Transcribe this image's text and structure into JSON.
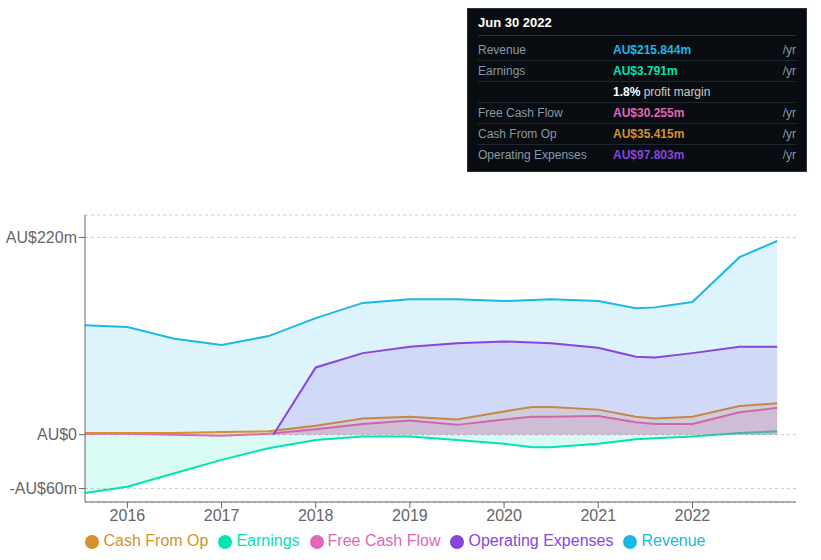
{
  "chart_data": {
    "type": "area",
    "xlim": [
      2015.55,
      2023.1
    ],
    "xticks": [
      2016,
      2017,
      2018,
      2019,
      2020,
      2021,
      2022
    ],
    "ylim": [
      -75,
      245
    ],
    "yticks": [
      {
        "value": -60,
        "label": "-AU$60m"
      },
      {
        "value": 0,
        "label": "AU$0"
      },
      {
        "value": 220,
        "label": "AU$220m"
      }
    ],
    "grid": true,
    "legend": "bottom",
    "series": [
      {
        "name": "Revenue",
        "color": "#1ab8e8",
        "x": [
          2015.55,
          2016.0,
          2016.5,
          2017.0,
          2017.5,
          2018.0,
          2018.5,
          2019.0,
          2019.5,
          2020.0,
          2020.5,
          2021.0,
          2021.4,
          2021.6,
          2022.0,
          2022.5,
          2022.9
        ],
        "values": [
          122,
          120,
          107,
          100,
          110,
          130,
          147,
          151,
          151,
          149,
          151,
          149,
          141,
          142,
          148,
          198,
          216
        ]
      },
      {
        "name": "Earnings",
        "color": "#00e5b0",
        "x": [
          2015.55,
          2016.0,
          2016.5,
          2017.0,
          2017.5,
          2018.0,
          2018.5,
          2019.0,
          2019.5,
          2020.0,
          2020.3,
          2020.5,
          2021.0,
          2021.4,
          2021.6,
          2022.0,
          2022.5,
          2022.9
        ],
        "values": [
          -65,
          -58,
          -43,
          -28,
          -15,
          -6,
          -2,
          -2,
          -6,
          -10,
          -14,
          -14,
          -10,
          -5,
          -4,
          -2,
          2,
          3.8
        ]
      },
      {
        "name": "Free Cash Flow",
        "color": "#e066bb",
        "x": [
          2015.55,
          2016.0,
          2016.5,
          2017.0,
          2017.5,
          2018.0,
          2018.5,
          2019.0,
          2019.5,
          2020.0,
          2020.3,
          2020.5,
          2021.0,
          2021.4,
          2021.6,
          2022.0,
          2022.5,
          2022.9
        ],
        "values": [
          1,
          1,
          0,
          -1,
          1,
          6,
          12,
          16,
          11,
          17,
          20,
          20,
          21,
          14,
          12,
          12,
          25,
          30
        ]
      },
      {
        "name": "Cash From Op",
        "color": "#d4922a",
        "x": [
          2015.55,
          2016.0,
          2016.5,
          2017.0,
          2017.5,
          2018.0,
          2018.5,
          2019.0,
          2019.5,
          2020.0,
          2020.3,
          2020.5,
          2021.0,
          2021.4,
          2021.6,
          2022.0,
          2022.5,
          2022.9
        ],
        "values": [
          2,
          2,
          2,
          3,
          4,
          10,
          18,
          20,
          17,
          26,
          31,
          31,
          28,
          20,
          18,
          20,
          32,
          35
        ]
      },
      {
        "name": "Operating Expenses",
        "color": "#8844dd",
        "x": [
          2017.55,
          2018.0,
          2018.5,
          2019.0,
          2019.5,
          2020.0,
          2020.5,
          2021.0,
          2021.4,
          2021.6,
          2022.0,
          2022.5,
          2022.9
        ],
        "values": [
          0,
          75,
          91,
          98,
          102,
          104,
          102,
          97,
          87,
          86,
          91,
          98,
          98
        ]
      }
    ],
    "annotations": {
      "title": "Jun 30 2022",
      "rows": [
        {
          "label": "Revenue",
          "text": "AU$215.844m",
          "unit": "/yr",
          "color": "#1ab8e8"
        },
        {
          "label": "Earnings",
          "text": "AU$3.791m",
          "unit": "/yr",
          "color": "#00e5b0"
        },
        {
          "text": "1.8%",
          "extra": " profit margin",
          "color": "white"
        },
        {
          "label": "Free Cash Flow",
          "text": "AU$30.255m",
          "unit": "/yr",
          "color": "#e066bb"
        },
        {
          "label": "Cash From Op",
          "text": "AU$35.415m",
          "unit": "/yr",
          "color": "#d4922a"
        },
        {
          "label": "Operating Expenses",
          "text": "AU$97.803m",
          "unit": "/yr",
          "color": "#8844dd"
        }
      ]
    }
  }
}
